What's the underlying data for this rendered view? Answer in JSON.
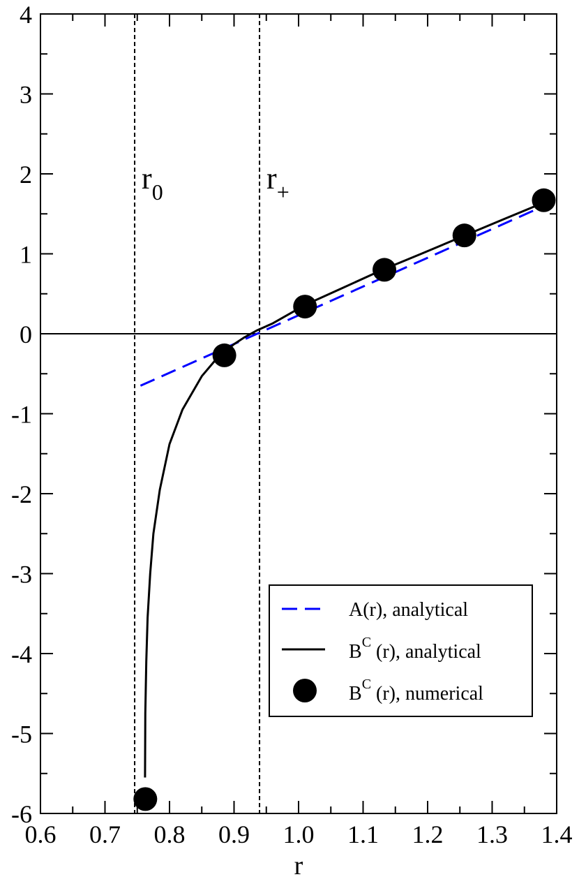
{
  "chart_data": {
    "type": "line",
    "title": "",
    "xlabel": "r",
    "ylabel": "",
    "xlim": [
      0.6,
      1.4
    ],
    "ylim": [
      -6,
      4
    ],
    "xticks": [
      0.6,
      0.7,
      0.8,
      0.9,
      1.0,
      1.1,
      1.2,
      1.3,
      1.4
    ],
    "xtick_labels": [
      "0.6",
      "0.7",
      "0.8",
      "0.9",
      "1.0",
      "1.1",
      "1.2",
      "1.3",
      "1.4"
    ],
    "yticks": [
      -6,
      -5,
      -4,
      -3,
      -2,
      -1,
      0,
      1,
      2,
      3,
      4
    ],
    "ytick_labels": [
      "-6",
      "-5",
      "-4",
      "-3",
      "-2",
      "-1",
      "0",
      "1",
      "2",
      "3",
      "4"
    ],
    "grid": false,
    "zero_line": true,
    "vertical_lines": [
      {
        "x": 0.746,
        "label": "r",
        "subscript": "0"
      },
      {
        "x": 0.9395,
        "label": "r",
        "subscript": "+"
      }
    ],
    "series": [
      {
        "name": "A(r), analytical",
        "style": "dashed",
        "color": "#0000ff",
        "x": [
          0.755,
          1.375
        ],
        "y": [
          -0.65,
          1.58
        ]
      },
      {
        "name": "B(r), analytical",
        "name_sup": "C",
        "name_text_pre": "B",
        "name_text_post": " (r), analytical",
        "style": "solid",
        "color": "#000000",
        "x": [
          0.762,
          0.7625,
          0.764,
          0.766,
          0.77,
          0.775,
          0.785,
          0.8,
          0.82,
          0.85,
          0.87,
          0.885,
          0.9,
          0.915,
          0.935,
          0.96,
          1.01,
          1.07,
          1.13,
          1.19,
          1.255,
          1.32,
          1.38
        ],
        "y": [
          -5.55,
          -4.75,
          -4.1,
          -3.55,
          -3.0,
          -2.5,
          -1.95,
          -1.38,
          -0.95,
          -0.53,
          -0.34,
          -0.23,
          -0.13,
          -0.05,
          0.04,
          0.13,
          0.36,
          0.58,
          0.8,
          1.0,
          1.22,
          1.44,
          1.64
        ]
      },
      {
        "name": "B(r), numerical",
        "name_sup": "C",
        "name_text_pre": "B",
        "name_text_post": " (r), numerical",
        "style": "markers",
        "color": "#000000",
        "x": [
          0.7625,
          0.885,
          1.01,
          1.133,
          1.257,
          1.38
        ],
        "y": [
          -5.82,
          -0.27,
          0.34,
          0.8,
          1.23,
          1.67
        ]
      }
    ],
    "legend_position": "bottom-right"
  }
}
